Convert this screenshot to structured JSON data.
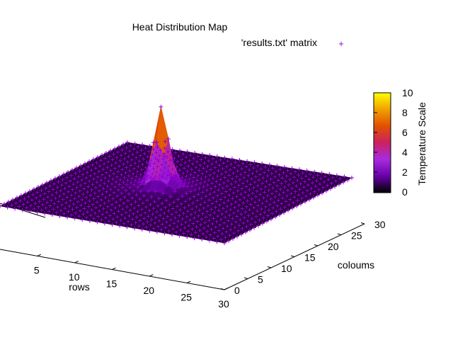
{
  "chart_data": {
    "type": "heatmap",
    "title": "Heat Distribution Map",
    "legend": {
      "label": "'results.txt' matrix",
      "marker": "+",
      "marker_color": "#9400d3"
    },
    "xlabel": "rows",
    "ylabel": "coloums",
    "x_ticks": [
      "5",
      "10",
      "15",
      "20",
      "25",
      "30"
    ],
    "y_ticks": [
      "0",
      "5",
      "10",
      "15",
      "20",
      "25",
      "30"
    ],
    "xlim": [
      0,
      30
    ],
    "ylim": [
      0,
      30
    ],
    "zlim": [
      0,
      10
    ],
    "grid_size": 31,
    "baseline_value": 0.6,
    "peak": {
      "row": 13,
      "col": 15,
      "value": 9
    },
    "colorbar": {
      "label": "Temperature Scale",
      "ticks": [
        "0",
        "2",
        "4",
        "6",
        "8",
        "10"
      ],
      "range": [
        0,
        10
      ],
      "palette": [
        "#000000",
        "#6a00a8",
        "#a72be0",
        "#cc2060",
        "#e05000",
        "#f2a000",
        "#ffff00"
      ]
    }
  }
}
